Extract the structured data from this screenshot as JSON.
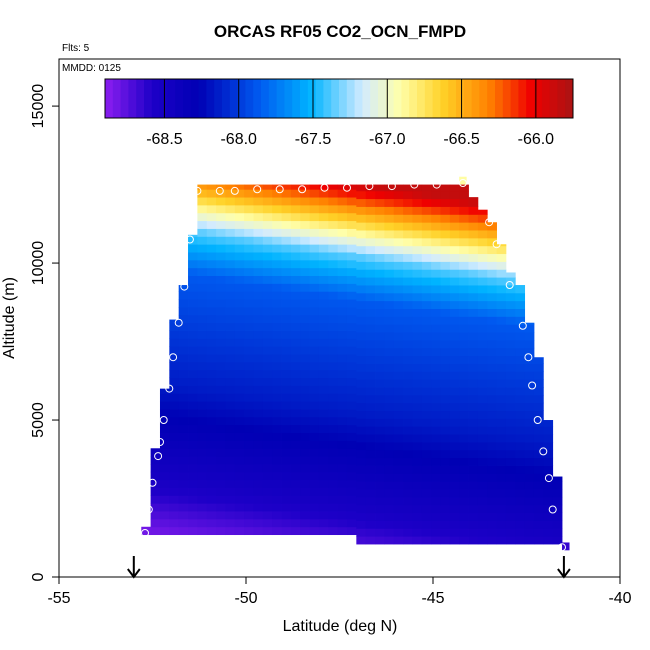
{
  "chart_data": {
    "type": "heatmap",
    "title": "ORCAS RF05 CO2_OCN_FMPD",
    "flights_note": "Flts: 5",
    "date_note": "MMDD: 0125",
    "xlabel": "Latitude (deg N)",
    "ylabel": "Altitude (m)",
    "xlim": [
      -55,
      -40
    ],
    "ylim": [
      0,
      16500
    ],
    "x_ticks": [
      -55,
      -50,
      -45,
      -40
    ],
    "y_ticks": [
      0,
      5000,
      10000,
      15000
    ],
    "colorbar": {
      "range": [
        -68.9,
        -65.75
      ],
      "ticks": [
        -68.5,
        -68.0,
        -67.5,
        -67.0,
        -66.5,
        -66.0
      ],
      "tick_labels": [
        "-68.5",
        "-68.0",
        "-67.5",
        "-67.0",
        "-66.5",
        "-66.0"
      ]
    },
    "grid": {
      "lat_min": -52.5,
      "lat_max": -41.5,
      "lat_step": 0.25,
      "alt_step": 250
    },
    "envelope": [
      {
        "lat": -52.5,
        "alt_min": 1350,
        "alt_max": 1600
      },
      {
        "lat": -52.75,
        "alt_min": 1350,
        "alt_max": 1600
      },
      {
        "lat": -52.5,
        "alt_min": 1350,
        "alt_max": 4100
      },
      {
        "lat": -52.25,
        "alt_min": 1350,
        "alt_max": 6000
      },
      {
        "lat": -52.0,
        "alt_min": 1350,
        "alt_max": 8200
      },
      {
        "lat": -51.75,
        "alt_min": 1350,
        "alt_max": 9300
      },
      {
        "lat": -51.5,
        "alt_min": 1350,
        "alt_max": 10900
      },
      {
        "lat": -51.25,
        "alt_min": 1350,
        "alt_max": 12500
      },
      {
        "lat": -47.25,
        "alt_min": 1350,
        "alt_max": 12500
      },
      {
        "lat": -47.0,
        "alt_min": 1050,
        "alt_max": 12500
      },
      {
        "lat": -44.25,
        "alt_min": 1050,
        "alt_max": 12500
      },
      {
        "lat": -44.0,
        "alt_min": 1050,
        "alt_max": 12100
      },
      {
        "lat": -43.75,
        "alt_min": 1050,
        "alt_max": 11700
      },
      {
        "lat": -43.5,
        "alt_min": 1050,
        "alt_max": 11300
      },
      {
        "lat": -43.25,
        "alt_min": 1050,
        "alt_max": 10600
      },
      {
        "lat": -42.75,
        "alt_min": 1050,
        "alt_max": 9300
      },
      {
        "lat": -42.5,
        "alt_min": 1050,
        "alt_max": 8100
      },
      {
        "lat": -42.25,
        "alt_min": 1050,
        "alt_max": 7000
      },
      {
        "lat": -42.0,
        "alt_min": 1050,
        "alt_max": 5000
      },
      {
        "lat": -41.75,
        "alt_min": 1050,
        "alt_max": 3200
      },
      {
        "lat": -41.5,
        "alt_min": 1050,
        "alt_max": 1050
      }
    ],
    "field_description": "low values (purple/dark blue, ~-68.9 to -68.4) at low altitude, mid values (~-68.1 to -67.8) mid-troposphere, light values (~-67.4) near 9500-10000 m, rising to ~-65.9 at top",
    "profile_points": [
      {
        "lat": -52.7,
        "alt": 1400
      },
      {
        "lat": -52.6,
        "alt": 2150
      },
      {
        "lat": -52.5,
        "alt": 3000
      },
      {
        "lat": -52.35,
        "alt": 3850
      },
      {
        "lat": -52.3,
        "alt": 4300
      },
      {
        "lat": -52.2,
        "alt": 5000
      },
      {
        "lat": -52.05,
        "alt": 6000
      },
      {
        "lat": -51.95,
        "alt": 7000
      },
      {
        "lat": -51.8,
        "alt": 8100
      },
      {
        "lat": -51.65,
        "alt": 9250
      },
      {
        "lat": -51.5,
        "alt": 10750
      },
      {
        "lat": -51.3,
        "alt": 12300
      },
      {
        "lat": -50.7,
        "alt": 12300
      },
      {
        "lat": -50.3,
        "alt": 12300
      },
      {
        "lat": -49.7,
        "alt": 12350
      },
      {
        "lat": -49.1,
        "alt": 12350
      },
      {
        "lat": -48.5,
        "alt": 12350
      },
      {
        "lat": -47.9,
        "alt": 12400
      },
      {
        "lat": -47.3,
        "alt": 12400
      },
      {
        "lat": -46.7,
        "alt": 12450
      },
      {
        "lat": -46.1,
        "alt": 12450
      },
      {
        "lat": -45.5,
        "alt": 12500
      },
      {
        "lat": -44.9,
        "alt": 12500
      },
      {
        "lat": -44.2,
        "alt": 12550
      },
      {
        "lat": -43.5,
        "alt": 11300
      },
      {
        "lat": -43.3,
        "alt": 10600
      },
      {
        "lat": -42.95,
        "alt": 9300
      },
      {
        "lat": -42.6,
        "alt": 8000
      },
      {
        "lat": -42.45,
        "alt": 7000
      },
      {
        "lat": -42.35,
        "alt": 6100
      },
      {
        "lat": -42.2,
        "alt": 5000
      },
      {
        "lat": -42.05,
        "alt": 4000
      },
      {
        "lat": -41.9,
        "alt": 3150
      },
      {
        "lat": -41.8,
        "alt": 2150
      },
      {
        "lat": -41.55,
        "alt": 950
      }
    ],
    "arrow_markers": [
      {
        "lat": -53.0
      },
      {
        "lat": -41.5
      }
    ],
    "top_highlight": {
      "lat": -44.2,
      "alt": 12500,
      "value": -66.9
    },
    "bottom_right_highlight": {
      "lat": -41.45,
      "alt": 900,
      "value": -68.65
    }
  }
}
